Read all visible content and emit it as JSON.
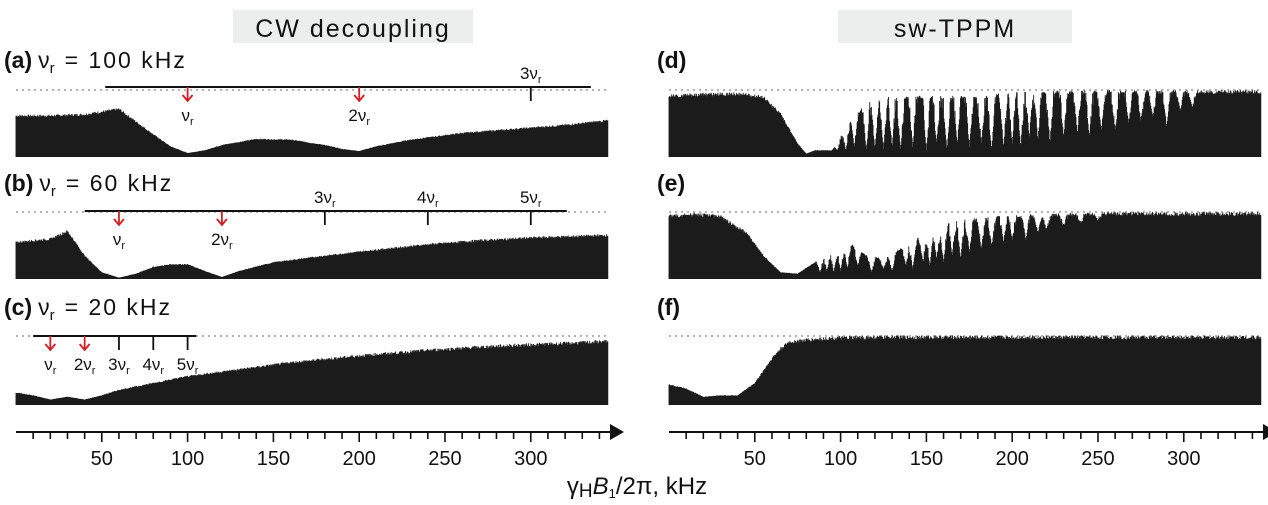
{
  "column_titles": {
    "left": "CW decoupling",
    "right": "sw-TPPM"
  },
  "x_axis": {
    "label_gamma": "γ",
    "label_H": "H",
    "label_B": "B",
    "label_1": "1",
    "label_rest": "/2π, kHz"
  },
  "chart_data": {
    "type": "area",
    "xlabel": "γHB1/2π, kHz",
    "xlim": [
      0,
      345
    ],
    "xticks": [
      50,
      100,
      150,
      200,
      250,
      300
    ],
    "yaxis": "normalized signal intensity (unlabeled), dotted line = reference level 1.0",
    "panels": [
      {
        "id": "a",
        "letter": "(a)",
        "condition": "ν",
        "condition_sub": "r",
        "condition_value": "= 100 kHz",
        "nu_r": 100,
        "resonance_labels": [
          "ν",
          "2ν",
          "3ν"
        ],
        "resonances": [
          100,
          200,
          300
        ],
        "envelope": {
          "x": [
            0,
            20,
            40,
            60,
            80,
            90,
            100,
            110,
            120,
            140,
            160,
            180,
            190,
            200,
            210,
            230,
            260,
            290,
            320,
            345
          ],
          "y": [
            0.62,
            0.62,
            0.64,
            0.72,
            0.34,
            0.16,
            0.06,
            0.1,
            0.18,
            0.27,
            0.26,
            0.18,
            0.12,
            0.09,
            0.16,
            0.26,
            0.36,
            0.42,
            0.48,
            0.55
          ]
        }
      },
      {
        "id": "b",
        "letter": "(b)",
        "condition": "ν",
        "condition_sub": "r",
        "condition_value": "= 60 kHz",
        "nu_r": 60,
        "resonance_labels": [
          "ν",
          "2ν",
          "3ν",
          "4ν",
          "5ν"
        ],
        "resonances": [
          60,
          120,
          180,
          240,
          300
        ],
        "envelope": {
          "x": [
            0,
            10,
            20,
            30,
            40,
            50,
            60,
            70,
            80,
            90,
            100,
            110,
            120,
            130,
            150,
            180,
            210,
            240,
            270,
            300,
            345
          ],
          "y": [
            0.55,
            0.58,
            0.6,
            0.72,
            0.35,
            0.1,
            0.02,
            0.08,
            0.18,
            0.22,
            0.22,
            0.12,
            0.03,
            0.12,
            0.25,
            0.35,
            0.44,
            0.52,
            0.58,
            0.62,
            0.66
          ]
        }
      },
      {
        "id": "c",
        "letter": "(c)",
        "condition": "ν",
        "condition_sub": "r",
        "condition_value": "= 20 kHz",
        "nu_r": 20,
        "resonance_labels": [
          "ν",
          "2ν",
          "3ν",
          "4ν",
          "5ν"
        ],
        "resonances": [
          20,
          40,
          60,
          80,
          100
        ],
        "envelope": {
          "x": [
            0,
            10,
            20,
            30,
            40,
            50,
            60,
            80,
            100,
            130,
            160,
            200,
            240,
            280,
            320,
            345
          ],
          "y": [
            0.18,
            0.14,
            0.08,
            0.12,
            0.08,
            0.14,
            0.22,
            0.32,
            0.42,
            0.52,
            0.62,
            0.72,
            0.8,
            0.86,
            0.9,
            0.93
          ]
        }
      },
      {
        "id": "d",
        "letter": "(d)",
        "envelope": {
          "x": [
            0,
            20,
            40,
            55,
            65,
            75,
            80,
            85,
            95,
            105,
            115,
            125,
            135,
            150,
            165,
            180,
            200,
            220,
            240,
            260,
            280,
            300,
            320,
            345
          ],
          "y": [
            0.92,
            0.94,
            0.95,
            0.9,
            0.65,
            0.2,
            0.05,
            0.1,
            0.1,
            0.5,
            0.8,
            0.88,
            0.9,
            0.9,
            0.9,
            0.9,
            0.95,
            0.97,
            0.98,
            0.98,
            0.98,
            0.98,
            0.98,
            0.98
          ]
        },
        "dips": {
          "x": [
            98,
            103,
            108,
            115,
            120,
            125,
            130,
            135,
            142,
            150,
            156,
            162,
            168,
            175,
            182,
            188,
            195,
            200,
            205,
            210,
            215,
            222,
            230,
            238,
            245,
            252,
            260,
            268,
            275,
            282,
            290,
            298,
            305
          ],
          "y": [
            0.1,
            0.1,
            0.15,
            0.1,
            0.12,
            0.12,
            0.15,
            0.1,
            0.15,
            0.1,
            0.2,
            0.1,
            0.2,
            0.15,
            0.2,
            0.1,
            0.15,
            0.2,
            0.15,
            0.3,
            0.25,
            0.2,
            0.3,
            0.35,
            0.3,
            0.4,
            0.4,
            0.5,
            0.55,
            0.6,
            0.45,
            0.7,
            0.75
          ]
        }
      },
      {
        "id": "e",
        "letter": "(e)",
        "envelope": {
          "x": [
            0,
            15,
            30,
            45,
            55,
            65,
            75,
            85,
            95,
            105,
            115,
            125,
            135,
            150,
            165,
            180,
            200,
            220,
            240,
            260,
            290,
            320,
            345
          ],
          "y": [
            0.95,
            0.97,
            0.94,
            0.7,
            0.35,
            0.1,
            0.08,
            0.25,
            0.4,
            0.55,
            0.35,
            0.3,
            0.45,
            0.7,
            0.85,
            0.9,
            0.94,
            0.96,
            0.97,
            0.98,
            0.98,
            0.98,
            0.98
          ]
        },
        "dips": {
          "x": [
            88,
            92,
            96,
            100,
            104,
            110,
            118,
            125,
            130,
            138,
            142,
            148,
            152,
            156,
            160,
            165,
            170,
            175,
            182,
            188,
            195,
            200,
            208,
            215,
            220,
            230,
            240,
            250
          ],
          "y": [
            0.1,
            0.12,
            0.1,
            0.12,
            0.15,
            0.2,
            0.1,
            0.15,
            0.12,
            0.2,
            0.15,
            0.25,
            0.2,
            0.3,
            0.25,
            0.35,
            0.3,
            0.4,
            0.45,
            0.5,
            0.55,
            0.6,
            0.6,
            0.7,
            0.75,
            0.8,
            0.85,
            0.9
          ]
        }
      },
      {
        "id": "f",
        "letter": "(f)",
        "envelope": {
          "x": [
            0,
            10,
            20,
            30,
            40,
            50,
            55,
            60,
            65,
            70,
            80,
            90,
            100,
            120,
            150,
            200,
            250,
            300,
            345
          ],
          "y": [
            0.3,
            0.24,
            0.12,
            0.14,
            0.14,
            0.32,
            0.5,
            0.68,
            0.82,
            0.92,
            0.95,
            0.97,
            0.98,
            0.99,
            0.99,
            0.99,
            0.99,
            0.99,
            0.99
          ]
        }
      }
    ]
  }
}
